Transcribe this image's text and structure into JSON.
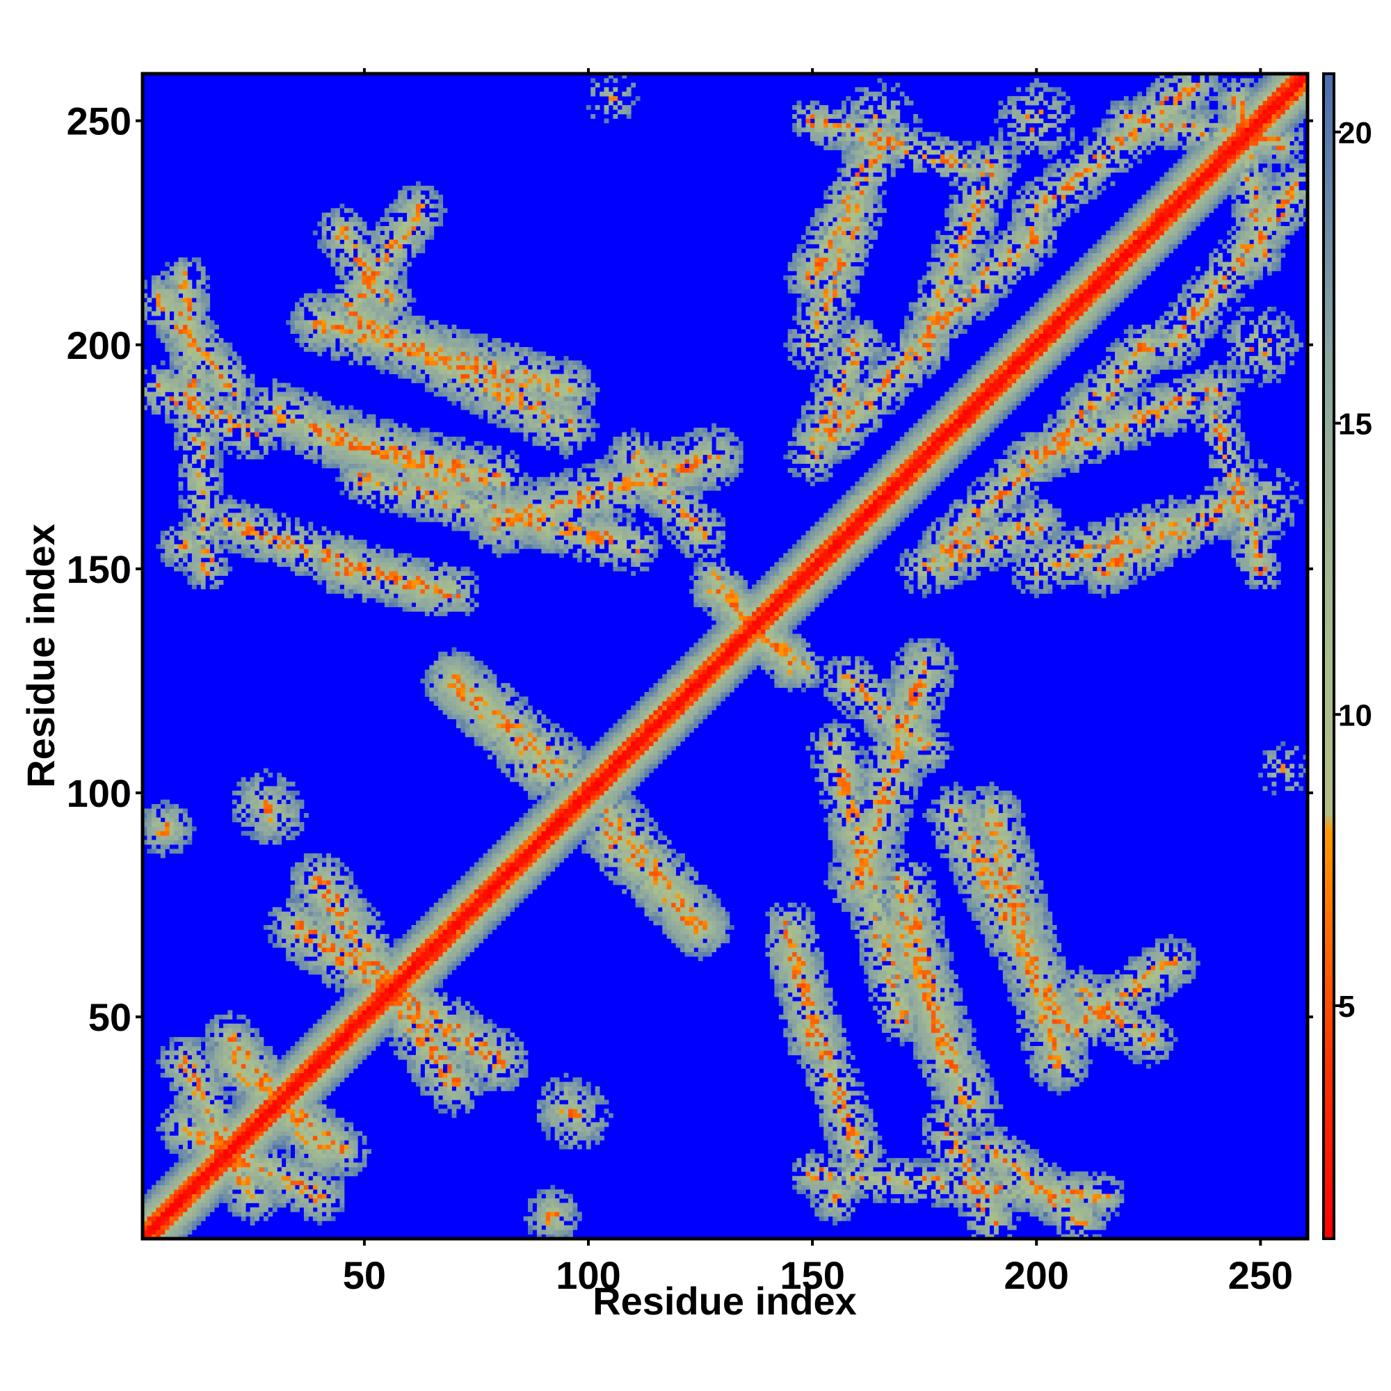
{
  "chart_data": {
    "type": "heatmap",
    "title": "",
    "xlabel": "Residue index",
    "ylabel": "Residue index",
    "xlim": [
      1,
      260
    ],
    "ylim": [
      1,
      260
    ],
    "x_ticks": [
      50,
      100,
      150,
      200,
      250
    ],
    "y_ticks": [
      50,
      100,
      150,
      200,
      250
    ],
    "colorbar": {
      "range": [
        1,
        21
      ],
      "ticks": [
        5,
        10,
        15,
        20
      ],
      "stops": [
        {
          "value": 1,
          "color": "#ff0000"
        },
        {
          "value": 4,
          "color": "#ff3300"
        },
        {
          "value": 6,
          "color": "#ff6600"
        },
        {
          "value": 8,
          "color": "#ff9900"
        },
        {
          "value": 8.3,
          "color": "#b4bd86"
        },
        {
          "value": 11,
          "color": "#a9bf8d"
        },
        {
          "value": 16,
          "color": "#8da7a0"
        },
        {
          "value": 21,
          "color": "#4a6fb0"
        }
      ],
      "background_color": "#0000ff"
    },
    "diagonal": {
      "core_width": 3,
      "band_width": 9,
      "orientation": "y=x"
    },
    "contact_regions": [
      {
        "kind": "band",
        "from": [
          40,
          80
        ],
        "to": [
          70,
          35
        ],
        "width": 7,
        "density": 0.75
      },
      {
        "kind": "band",
        "from": [
          10,
          25
        ],
        "to": [
          40,
          10
        ],
        "width": 6,
        "density": 0.8
      },
      {
        "kind": "band",
        "from": [
          20,
          45
        ],
        "to": [
          40,
          20
        ],
        "width": 6,
        "density": 0.8
      },
      {
        "kind": "blob",
        "center": [
          28,
          97
        ],
        "radius": 8,
        "density": 0.6
      },
      {
        "kind": "blob",
        "center": [
          6,
          92
        ],
        "radius": 6,
        "density": 0.6
      },
      {
        "kind": "blob",
        "center": [
          95,
          30
        ],
        "radius": 7,
        "density": 0.6
      },
      {
        "kind": "blob",
        "center": [
          92,
          5
        ],
        "radius": 6,
        "density": 0.5
      },
      {
        "kind": "band",
        "from": [
          70,
          125
        ],
        "to": [
          90,
          105
        ],
        "width": 7,
        "density": 0.75
      },
      {
        "kind": "band",
        "from": [
          105,
          95
        ],
        "to": [
          125,
          70
        ],
        "width": 7,
        "density": 0.75
      },
      {
        "kind": "band",
        "from": [
          128,
          145
        ],
        "to": [
          148,
          128
        ],
        "width": 5,
        "density": 0.8
      },
      {
        "kind": "band",
        "from": [
          145,
          65
        ],
        "to": [
          160,
          20
        ],
        "width": 6,
        "density": 0.7
      },
      {
        "kind": "band",
        "from": [
          155,
          110
        ],
        "to": [
          170,
          50
        ],
        "width": 6,
        "density": 0.7
      },
      {
        "kind": "band",
        "from": [
          158,
          125
        ],
        "to": [
          175,
          110
        ],
        "width": 6,
        "density": 0.7
      },
      {
        "kind": "band",
        "from": [
          170,
          70
        ],
        "to": [
          185,
          30
        ],
        "width": 7,
        "density": 0.7
      },
      {
        "kind": "band",
        "from": [
          182,
          95
        ],
        "to": [
          205,
          50
        ],
        "width": 7,
        "density": 0.7
      },
      {
        "kind": "band",
        "from": [
          205,
          45
        ],
        "to": [
          230,
          62
        ],
        "width": 6,
        "density": 0.7
      },
      {
        "kind": "band",
        "from": [
          150,
          15
        ],
        "to": [
          215,
          10
        ],
        "width": 5,
        "density": 0.6
      },
      {
        "kind": "band",
        "from": [
          180,
          25
        ],
        "to": [
          190,
          5
        ],
        "width": 6,
        "density": 0.6
      },
      {
        "kind": "band",
        "from": [
          45,
          150
        ],
        "to": [
          70,
          145
        ],
        "width": 6,
        "density": 0.7
      },
      {
        "kind": "band",
        "from": [
          40,
          180
        ],
        "to": [
          80,
          170
        ],
        "width": 7,
        "density": 0.75
      },
      {
        "kind": "band",
        "from": [
          80,
          160
        ],
        "to": [
          128,
          175
        ],
        "width": 7,
        "density": 0.75
      },
      {
        "kind": "band",
        "from": [
          40,
          205
        ],
        "to": [
          95,
          190
        ],
        "width": 7,
        "density": 0.75
      },
      {
        "kind": "band",
        "from": [
          45,
          225
        ],
        "to": [
          55,
          210
        ],
        "width": 6,
        "density": 0.7
      },
      {
        "kind": "band",
        "from": [
          5,
          210
        ],
        "to": [
          20,
          190
        ],
        "width": 6,
        "density": 0.7
      },
      {
        "kind": "blob",
        "center": [
          10,
          155
        ],
        "radius": 6,
        "density": 0.5
      },
      {
        "kind": "band",
        "from": [
          150,
          200
        ],
        "to": [
          160,
          230
        ],
        "width": 6,
        "density": 0.7
      },
      {
        "kind": "band",
        "from": [
          155,
          180
        ],
        "to": [
          175,
          200
        ],
        "width": 6,
        "density": 0.7
      },
      {
        "kind": "band",
        "from": [
          175,
          150
        ],
        "to": [
          200,
          160
        ],
        "width": 6,
        "density": 0.7
      },
      {
        "kind": "band",
        "from": [
          178,
          205
        ],
        "to": [
          200,
          225
        ],
        "width": 6,
        "density": 0.7
      },
      {
        "kind": "band",
        "from": [
          215,
          150
        ],
        "to": [
          245,
          165
        ],
        "width": 6,
        "density": 0.7
      },
      {
        "kind": "band",
        "from": [
          200,
          175
        ],
        "to": [
          240,
          190
        ],
        "width": 6,
        "density": 0.7
      },
      {
        "kind": "band",
        "from": [
          230,
          200
        ],
        "to": [
          258,
          235
        ],
        "width": 6,
        "density": 0.7
      },
      {
        "kind": "band",
        "from": [
          220,
          250
        ],
        "to": [
          255,
          245
        ],
        "width": 5,
        "density": 0.7
      },
      {
        "kind": "band",
        "from": [
          150,
          250
        ],
        "to": [
          185,
          240
        ],
        "width": 5,
        "density": 0.6
      },
      {
        "kind": "blob",
        "center": [
          250,
          200
        ],
        "radius": 9,
        "density": 0.45
      },
      {
        "kind": "blob",
        "center": [
          250,
          165
        ],
        "radius": 9,
        "density": 0.45
      },
      {
        "kind": "blob",
        "center": [
          255,
          105
        ],
        "radius": 6,
        "density": 0.3
      }
    ]
  }
}
